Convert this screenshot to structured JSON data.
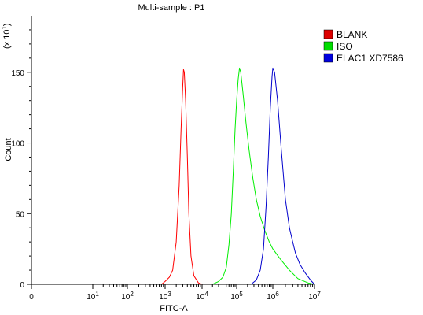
{
  "chart_data": {
    "type": "line",
    "title": "Multi-sample : P1",
    "xlabel": "FITC-A",
    "ylabel": "Count",
    "y_multiplier": "(x 10",
    "y_multiplier_exp": "1",
    "x_scale": "log",
    "xlim": [
      0,
      10000000
    ],
    "ylim": [
      0,
      190
    ],
    "grid": false,
    "legend_position": "right",
    "x_ticks": [
      {
        "value": 0,
        "base": "0",
        "exp": ""
      },
      {
        "value": 10,
        "base": "10",
        "exp": "1"
      },
      {
        "value": 100,
        "base": "10",
        "exp": "2"
      },
      {
        "value": 1000,
        "base": "10",
        "exp": "3"
      },
      {
        "value": 10000,
        "base": "10",
        "exp": "4"
      },
      {
        "value": 100000,
        "base": "10",
        "exp": "5"
      },
      {
        "value": 1000000,
        "base": "10",
        "exp": "6"
      },
      {
        "value": 10000000,
        "base": "10",
        "exp": "7"
      }
    ],
    "y_ticks": [
      0,
      50,
      100,
      150
    ],
    "series": [
      {
        "name": "BLANK",
        "color": "#ff0000",
        "legend_color": "#dd0000",
        "points": [
          [
            800,
            0
          ],
          [
            1000,
            2
          ],
          [
            1300,
            5
          ],
          [
            1600,
            10
          ],
          [
            2000,
            30
          ],
          [
            2400,
            70
          ],
          [
            2700,
            110
          ],
          [
            3000,
            140
          ],
          [
            3150,
            152
          ],
          [
            3300,
            150
          ],
          [
            3600,
            130
          ],
          [
            4000,
            90
          ],
          [
            4400,
            50
          ],
          [
            5000,
            20
          ],
          [
            6000,
            6
          ],
          [
            8000,
            1
          ],
          [
            10000,
            0
          ]
        ]
      },
      {
        "name": "ISO",
        "color": "#00ee00",
        "legend_color": "#00dd00",
        "points": [
          [
            20000,
            0
          ],
          [
            30000,
            2
          ],
          [
            40000,
            5
          ],
          [
            50000,
            12
          ],
          [
            60000,
            28
          ],
          [
            70000,
            50
          ],
          [
            80000,
            80
          ],
          [
            90000,
            110
          ],
          [
            100000,
            130
          ],
          [
            110000,
            145
          ],
          [
            120000,
            153
          ],
          [
            130000,
            150
          ],
          [
            150000,
            135
          ],
          [
            180000,
            115
          ],
          [
            220000,
            95
          ],
          [
            280000,
            75
          ],
          [
            350000,
            60
          ],
          [
            450000,
            48
          ],
          [
            600000,
            38
          ],
          [
            800000,
            30
          ],
          [
            1000000,
            25
          ],
          [
            1500000,
            18
          ],
          [
            2500000,
            10
          ],
          [
            4000000,
            4
          ],
          [
            7000000,
            1
          ],
          [
            10000000,
            0
          ]
        ]
      },
      {
        "name": "ELAC1 XD7586",
        "color": "#0000cc",
        "legend_color": "#0000dd",
        "points": [
          [
            250000,
            0
          ],
          [
            350000,
            3
          ],
          [
            450000,
            10
          ],
          [
            550000,
            25
          ],
          [
            650000,
            55
          ],
          [
            750000,
            90
          ],
          [
            850000,
            125
          ],
          [
            950000,
            147
          ],
          [
            1000000,
            153
          ],
          [
            1100000,
            150
          ],
          [
            1300000,
            130
          ],
          [
            1600000,
            95
          ],
          [
            2000000,
            60
          ],
          [
            2500000,
            40
          ],
          [
            3000000,
            30
          ],
          [
            3500000,
            22
          ],
          [
            4500000,
            14
          ],
          [
            6000000,
            8
          ],
          [
            8000000,
            3
          ],
          [
            10000000,
            0
          ]
        ]
      }
    ]
  }
}
